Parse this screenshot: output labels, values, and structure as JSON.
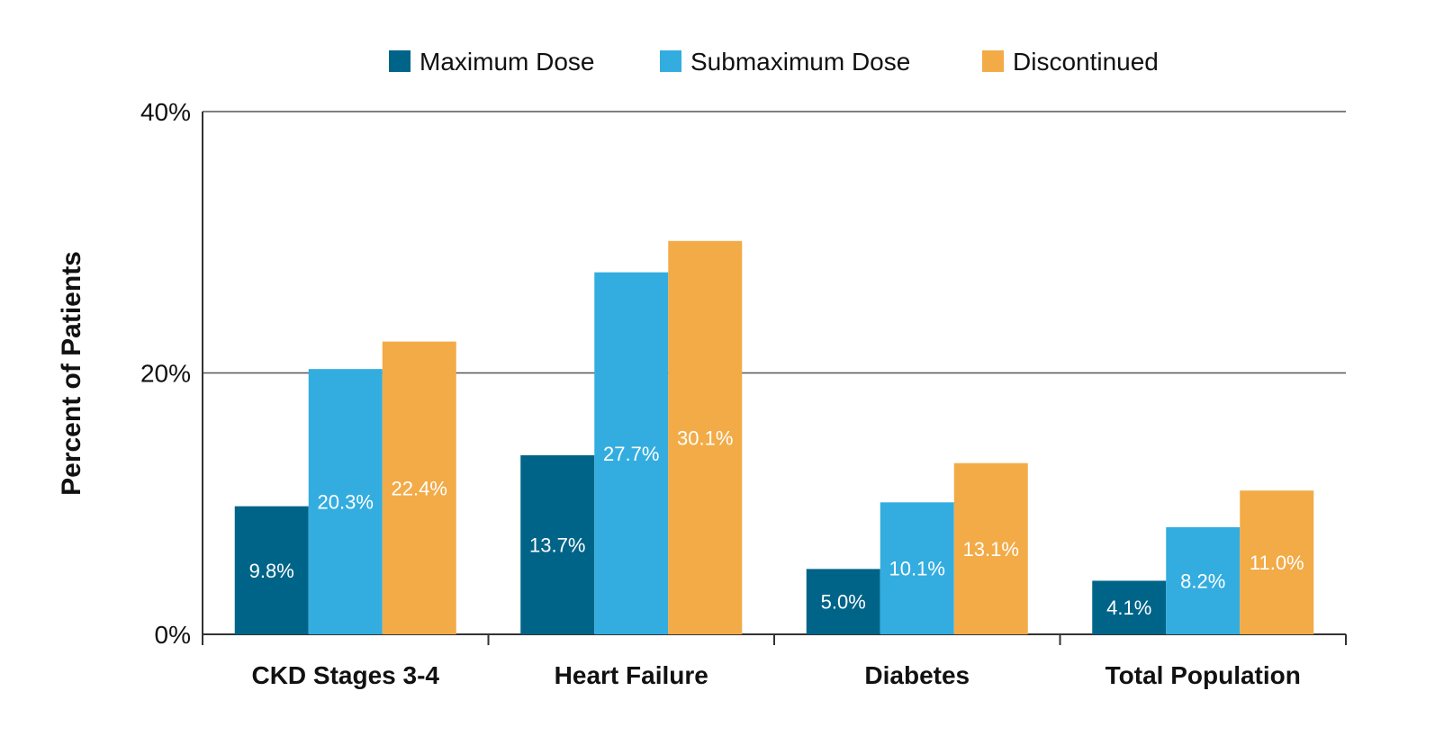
{
  "chart_data": {
    "type": "bar",
    "categories": [
      "CKD Stages 3-4",
      "Heart Failure",
      "Diabetes",
      "Total Population"
    ],
    "series": [
      {
        "name": "Maximum Dose",
        "values": [
          9.8,
          13.7,
          5.0,
          4.1
        ],
        "labels": [
          "9.8%",
          "13.7%",
          "5.0%",
          "4.1%"
        ],
        "color": "#006489"
      },
      {
        "name": "Submaximum Dose",
        "values": [
          20.3,
          27.7,
          10.1,
          8.2
        ],
        "labels": [
          "20.3%",
          "27.7%",
          "10.1%",
          "8.2%"
        ],
        "color": "#33ade0"
      },
      {
        "name": "Discontinued",
        "values": [
          22.4,
          30.1,
          13.1,
          11.0
        ],
        "labels": [
          "22.4%",
          "30.1%",
          "13.1%",
          "11.0%"
        ],
        "color": "#f2ab47"
      }
    ],
    "ylabel": "Percent of Patients",
    "ylim": [
      0,
      40
    ],
    "y_ticks": [
      0,
      20,
      40
    ],
    "y_tick_labels": [
      "0%",
      "20%",
      "40%"
    ],
    "grid": true,
    "legend_position": "top"
  }
}
